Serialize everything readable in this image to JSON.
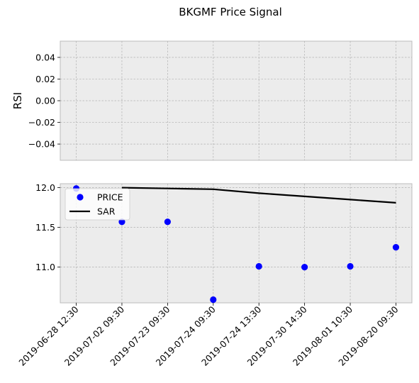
{
  "chart_data": {
    "title": "BKGMF Price Signal",
    "type": "line",
    "categories": [
      "2019-06-28 12:30",
      "2019-07-02 09:30",
      "2019-07-23 09:30",
      "2019-07-24 09:30",
      "2019-07-24 13:30",
      "2019-07-30 14:30",
      "2019-08-01 10:30",
      "2019-08-20 09:30"
    ],
    "panels": [
      {
        "ylabel": "RSI",
        "ylim": [
          -0.055,
          0.055
        ],
        "yticks": [
          0.04,
          0.02,
          0.0,
          -0.02,
          -0.04
        ],
        "ytick_labels": [
          "0.04",
          "0.02",
          "0.00",
          "−0.02",
          "−0.04"
        ],
        "grid": true,
        "series": []
      },
      {
        "ylabel": "",
        "ylim": [
          10.55,
          12.05
        ],
        "yticks": [
          12.0,
          11.5,
          11.0
        ],
        "ytick_labels": [
          "12.0",
          "11.5",
          "11.0"
        ],
        "grid": true,
        "legend": "upper-left",
        "series": [
          {
            "name": "PRICE",
            "kind": "scatter",
            "color": "#0000ff",
            "values": [
              11.99,
              11.57,
              11.57,
              10.59,
              11.01,
              11.0,
              11.01,
              11.25
            ]
          },
          {
            "name": "SAR",
            "kind": "line",
            "color": "#000000",
            "x_index": [
              1,
              2,
              3,
              4,
              5,
              6,
              7
            ],
            "values": [
              12.0,
              11.99,
              11.98,
              11.93,
              11.89,
              11.85,
              11.81
            ]
          }
        ]
      }
    ],
    "colors": {
      "axes_bg": "#ececec",
      "grid": "#b0b0b0",
      "spine": "#bcbcbc"
    }
  }
}
